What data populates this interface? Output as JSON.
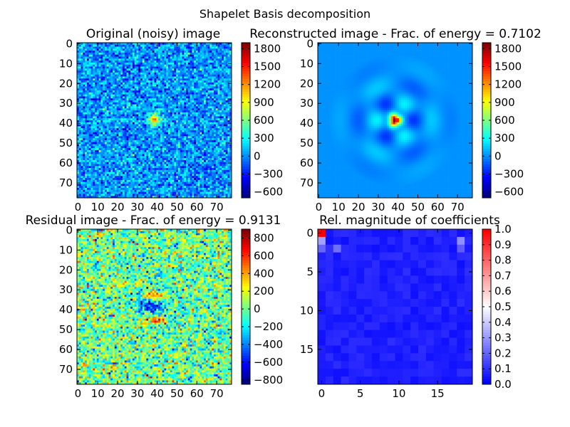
{
  "figure": {
    "suptitle": "Shapelet Basis decomposition"
  },
  "chart_data": [
    {
      "type": "heatmap",
      "title": "Original (noisy) image",
      "xlim": [
        0,
        77
      ],
      "ylim": [
        77,
        0
      ],
      "xticks": [
        0,
        10,
        20,
        30,
        40,
        50,
        60,
        70
      ],
      "yticks": [
        0,
        10,
        20,
        30,
        40,
        50,
        60,
        70
      ],
      "colormap": "jet",
      "colorbar": {
        "range": [
          -700,
          1900
        ],
        "ticks": [
          1800,
          1500,
          1200,
          900,
          600,
          300,
          0,
          -300,
          -600
        ],
        "tick_labels": [
          "1800",
          "1500",
          "1200",
          "900",
          "600",
          "300",
          "0",
          "−300",
          "−600"
        ]
      }
    },
    {
      "type": "heatmap",
      "title": "Reconstructed image - Frac. of energy = 0.7102",
      "xlim": [
        0,
        77
      ],
      "ylim": [
        77,
        0
      ],
      "xticks": [
        0,
        10,
        20,
        30,
        40,
        50,
        60,
        70
      ],
      "yticks": [
        0,
        10,
        20,
        30,
        40,
        50,
        60,
        70
      ],
      "colormap": "jet",
      "colorbar": {
        "range": [
          -700,
          1900
        ],
        "ticks": [
          1800,
          1500,
          1200,
          900,
          600,
          300,
          0,
          -300,
          -600
        ],
        "tick_labels": [
          "1800",
          "1500",
          "1200",
          "900",
          "600",
          "300",
          "0",
          "−300",
          "−600"
        ]
      }
    },
    {
      "type": "heatmap",
      "title": "Residual image - Frac. of energy = 0.9131",
      "xlim": [
        0,
        77
      ],
      "ylim": [
        77,
        0
      ],
      "xticks": [
        0,
        10,
        20,
        30,
        40,
        50,
        60,
        70
      ],
      "yticks": [
        0,
        10,
        20,
        30,
        40,
        50,
        60,
        70
      ],
      "colormap": "jet",
      "colorbar": {
        "range": [
          -850,
          900
        ],
        "ticks": [
          800,
          600,
          400,
          200,
          0,
          -200,
          -400,
          -600,
          -800
        ],
        "tick_labels": [
          "800",
          "600",
          "400",
          "200",
          "0",
          "−200",
          "−400",
          "−600",
          "−800"
        ]
      }
    },
    {
      "type": "heatmap",
      "title": "Rel. magnitude of coefficients",
      "xlim": [
        0,
        19
      ],
      "ylim": [
        19,
        0
      ],
      "xticks": [
        0,
        5,
        10,
        15
      ],
      "yticks": [
        0,
        5,
        10,
        15
      ],
      "colormap": "bwr",
      "colorbar": {
        "range": [
          0,
          1
        ],
        "ticks": [
          1.0,
          0.9,
          0.8,
          0.7,
          0.6,
          0.5,
          0.4,
          0.3,
          0.2,
          0.1,
          0.0
        ],
        "tick_labels": [
          "1.0",
          "0.9",
          "0.8",
          "0.7",
          "0.6",
          "0.5",
          "0.4",
          "0.3",
          "0.2",
          "0.1",
          "0.0"
        ]
      },
      "highlighted_cells": [
        {
          "row": 0,
          "col": 0,
          "value": 1.0
        },
        {
          "row": 1,
          "col": 0,
          "value": 0.32
        },
        {
          "row": 2,
          "col": 0,
          "value": 0.2
        },
        {
          "row": 2,
          "col": 2,
          "value": 0.22
        },
        {
          "row": 1,
          "col": 18,
          "value": 0.28
        },
        {
          "row": 2,
          "col": 18,
          "value": 0.18
        }
      ]
    }
  ]
}
